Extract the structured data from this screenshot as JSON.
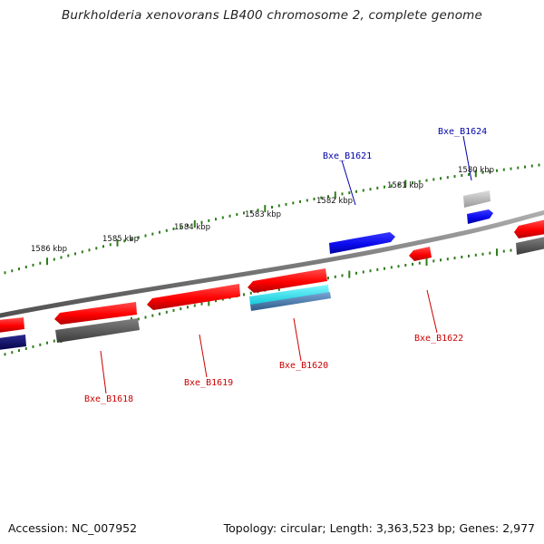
{
  "title": "Burkholderia xenovorans LB400 chromosome 2, complete genome",
  "footer": {
    "accession": "Accession: NC_007952",
    "topology": "Topology: circular; Length: 3,363,523 bp; Genes: 2,977"
  },
  "tick_labels": [
    "1586 kbp",
    "1585 kbp",
    "1584 kbp",
    "1583 kbp",
    "1582 kbp",
    "1581 kbp",
    "1580 kbp"
  ],
  "gene_labels": {
    "b1618": "Bxe_B1618",
    "b1619": "Bxe_B1619",
    "b1620": "Bxe_B1620",
    "b1621": "Bxe_B1621",
    "b1622": "Bxe_B1622",
    "b1624": "Bxe_B1624"
  },
  "colors": {
    "backbone": "#808080",
    "tick": "#2f7d1c",
    "forward_gene": "#ff1a1a",
    "reverse_gene": "#1414ee",
    "dark_gene": "#606060",
    "navy_gene": "#101070",
    "light_gene": "#b8b8b8",
    "cyan_gene": "#1ee0e8",
    "steel_gene": "#4a78a8",
    "label_red": "#cc0000",
    "label_blue": "#0000aa"
  }
}
